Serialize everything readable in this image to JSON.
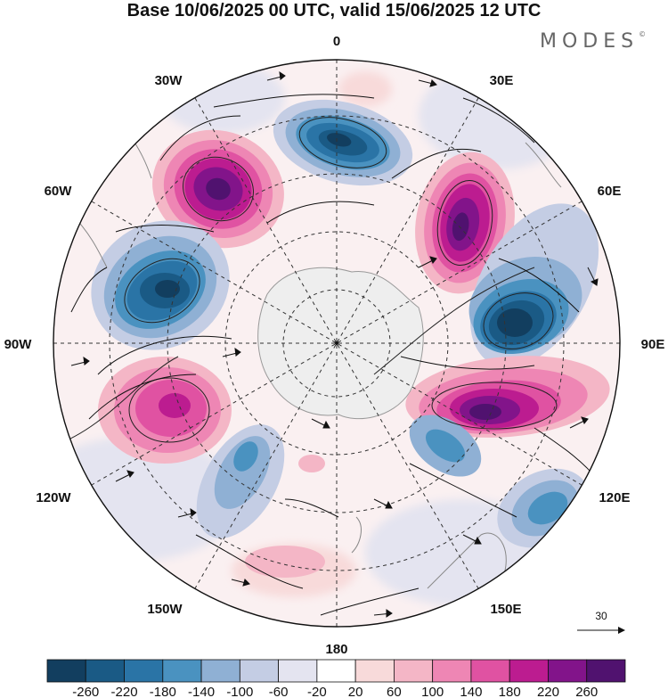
{
  "title": "Base 10/06/2025 00 UTC, valid 15/06/2025 12 UTC",
  "brand": "MODES",
  "brand_mark": "©",
  "longitude_labels": {
    "top": "0",
    "t30e": "30E",
    "t60e": "60E",
    "t90e": "90E",
    "t120e": "120E",
    "t150e": "150E",
    "bottom": "180",
    "t150w": "150W",
    "t120w": "120W",
    "t90w": "90W",
    "t60w": "60W",
    "t30w": "30W"
  },
  "reference_vector_label": "30",
  "colorbar": {
    "ticks": [
      "-260",
      "-220",
      "-180",
      "-140",
      "-100",
      "-60",
      "-20",
      "20",
      "60",
      "100",
      "140",
      "180",
      "220",
      "260"
    ],
    "colors": [
      "#123e5f",
      "#1a5a85",
      "#2a74a6",
      "#4a92c0",
      "#8fb0d4",
      "#c4cde4",
      "#e4e4f0",
      "#ffffff",
      "#f8dada",
      "#f4b6c6",
      "#ee86b4",
      "#e052a2",
      "#bc1c90",
      "#82148a",
      "#50126f"
    ]
  },
  "map": {
    "projection": "south polar stereographic",
    "field": "anomaly with wind streamlines",
    "anomaly_centers": [
      {
        "sign": "positive",
        "approx_value": 260,
        "near": "35W"
      },
      {
        "sign": "negative",
        "approx_value": -220,
        "near": "0"
      },
      {
        "sign": "positive",
        "approx_value": 260,
        "near": "45E"
      },
      {
        "sign": "negative",
        "approx_value": -240,
        "near": "85E"
      },
      {
        "sign": "positive",
        "approx_value": 240,
        "near": "105E"
      },
      {
        "sign": "negative",
        "approx_value": -200,
        "near": "75W"
      },
      {
        "sign": "positive",
        "approx_value": 160,
        "near": "115W"
      },
      {
        "sign": "negative",
        "approx_value": -140,
        "near": "125E"
      },
      {
        "sign": "negative",
        "approx_value": -100,
        "near": "140W"
      },
      {
        "sign": "positive",
        "approx_value": 60,
        "near": "170W"
      }
    ]
  }
}
